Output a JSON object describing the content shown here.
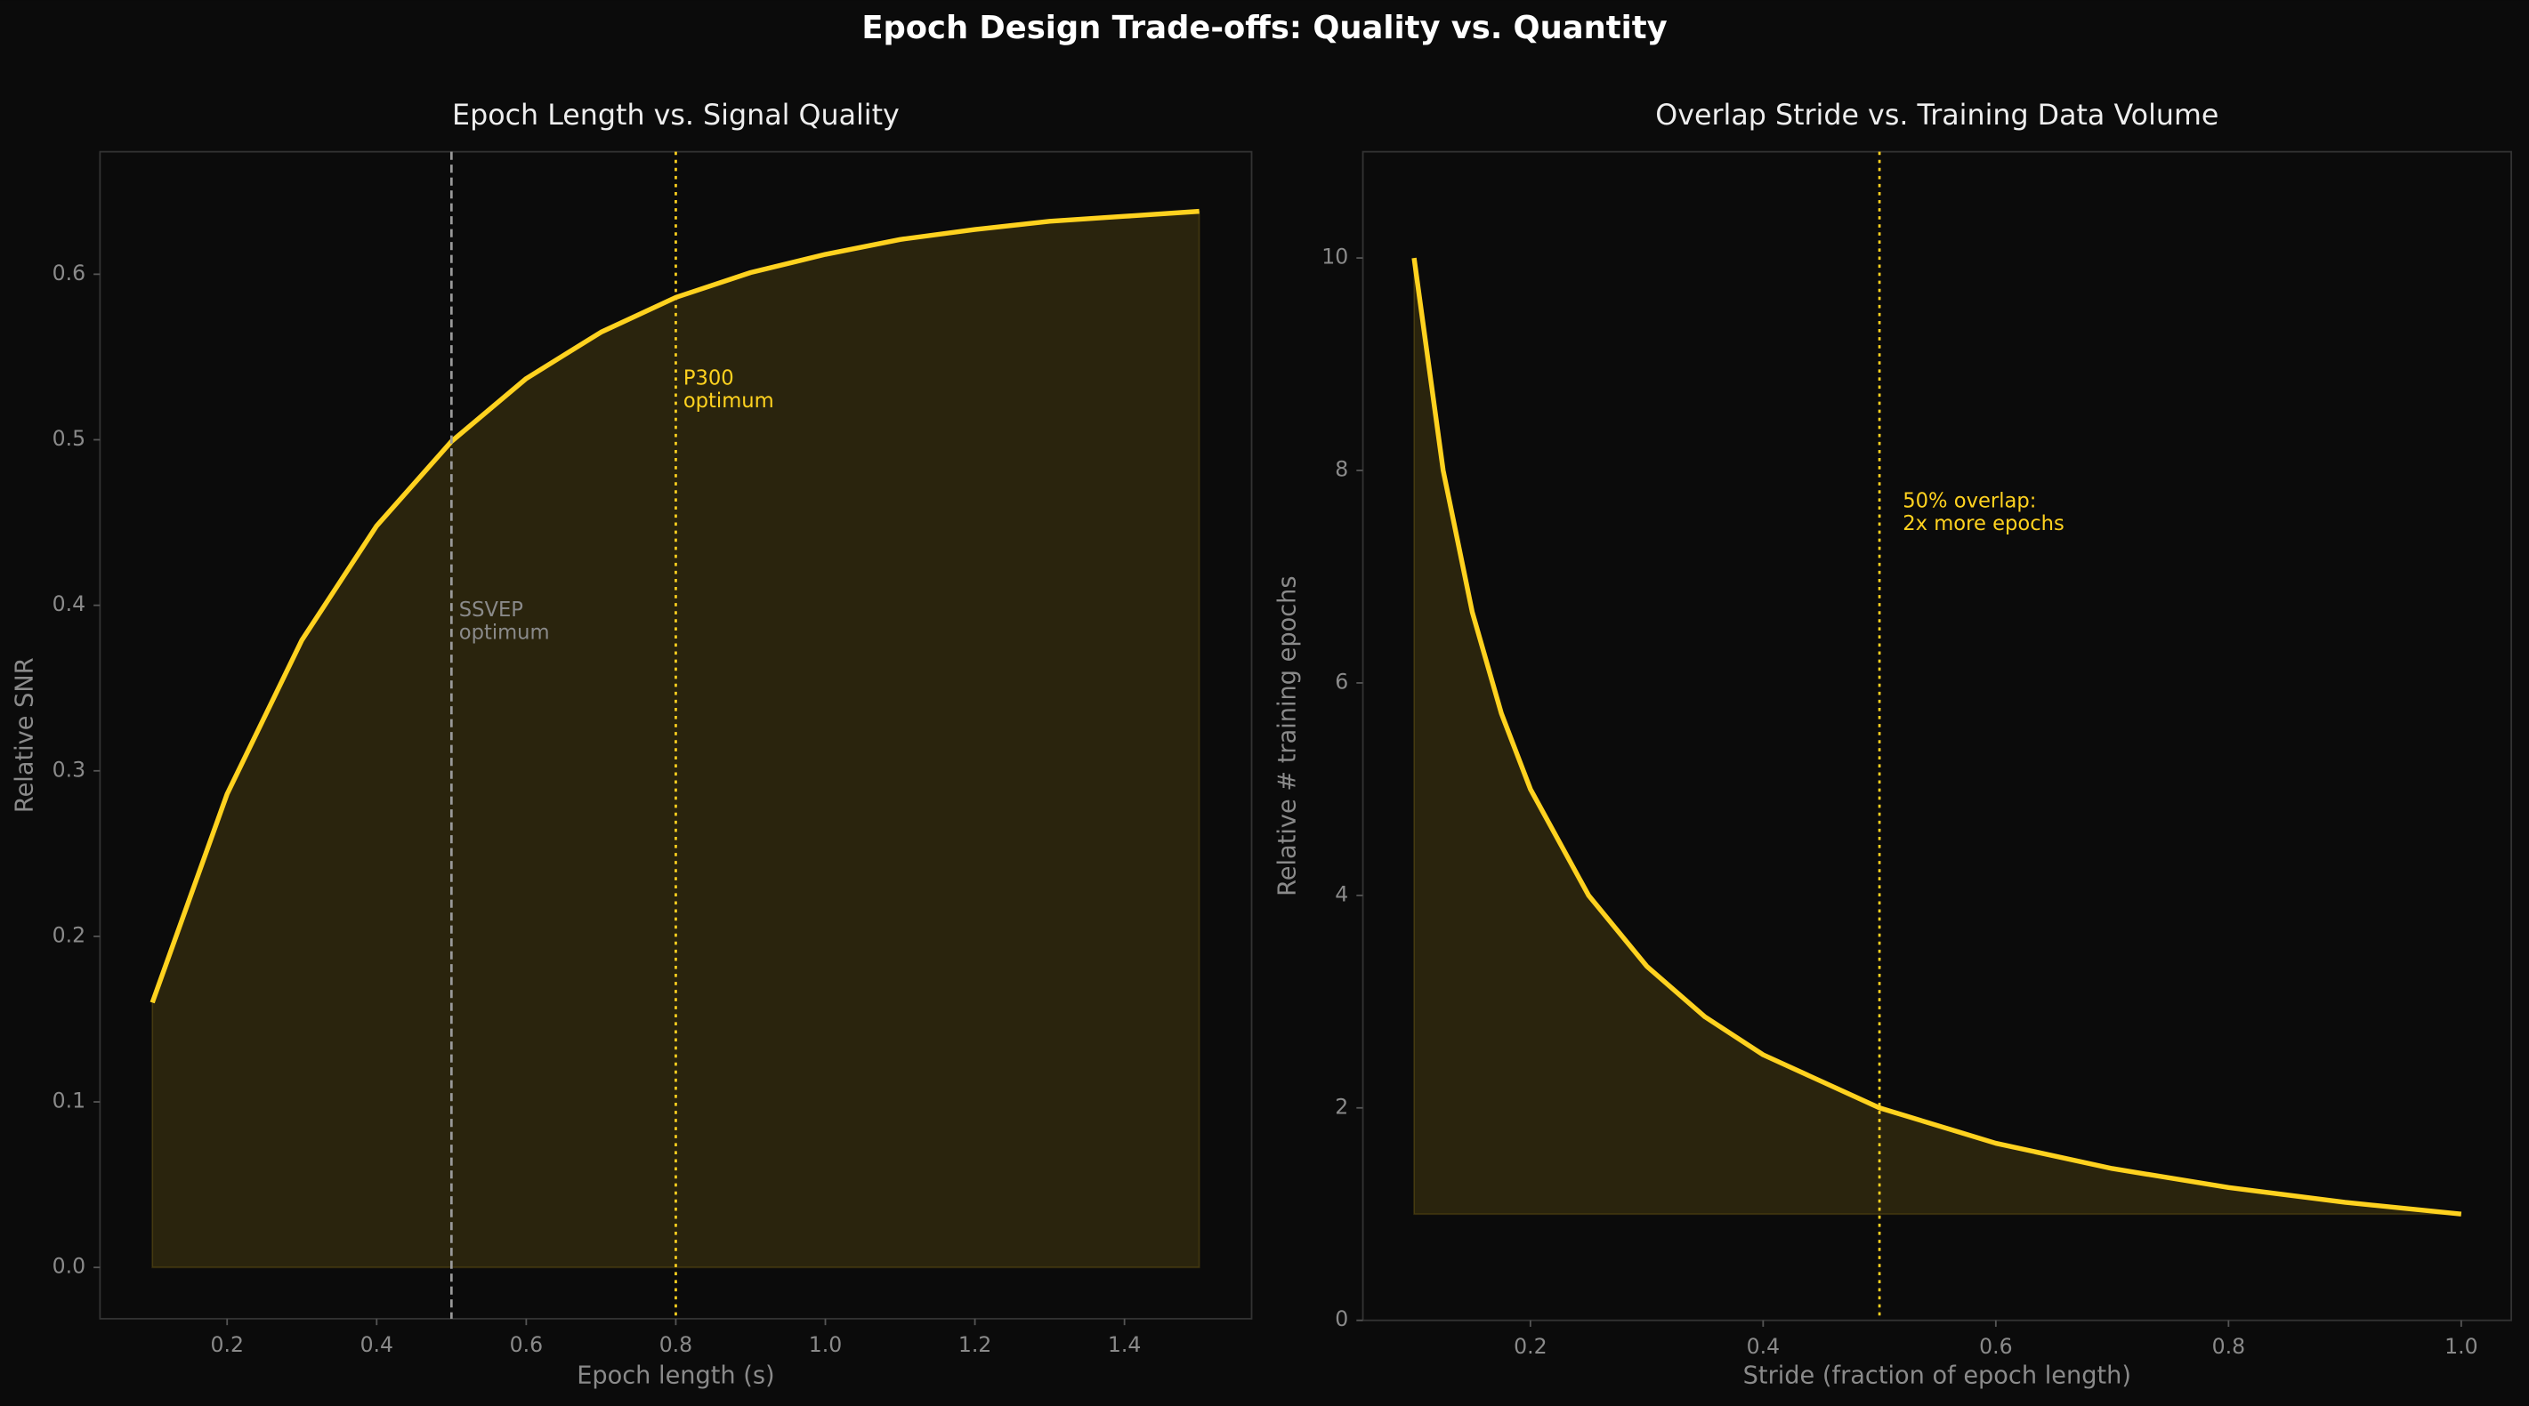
{
  "title": "Epoch Design Trade-offs: Quality vs. Quantity",
  "chart_data": [
    {
      "type": "line",
      "title": "Epoch Length vs. Signal Quality",
      "x_label": "Epoch length (s)",
      "y_label": "Relative SNR",
      "x": [
        0.1,
        0.2,
        0.3,
        0.4,
        0.5,
        0.6,
        0.7,
        0.8,
        0.9,
        1.0,
        1.1,
        1.2,
        1.3,
        1.4,
        1.5
      ],
      "series": [
        {
          "color": "#ffd21f",
          "values": [
            0.16,
            0.286,
            0.379,
            0.448,
            0.499,
            0.537,
            0.565,
            0.586,
            0.601,
            0.612,
            0.621,
            0.627,
            0.632,
            0.635,
            0.638
          ],
          "fill_to": 0
        }
      ],
      "xlim": [
        0.03,
        1.57
      ],
      "ylim": [
        -0.031,
        0.674
      ],
      "xticks": [
        0.2,
        0.4,
        0.6,
        0.8,
        {
          "value": 1,
          "label": "1.0"
        },
        1.2,
        1.4
      ],
      "yticks": [
        {
          "value": 0,
          "label": "0.0"
        },
        0.1,
        0.2,
        0.3,
        0.4,
        0.5,
        0.6
      ],
      "grid": false,
      "vlines": [
        {
          "x": 0.5,
          "color": "#9a9a9a",
          "style": "dashed"
        },
        {
          "x": 0.8,
          "color": "#ffd21f",
          "style": "dotted"
        }
      ],
      "annotations": [
        {
          "text": [
            "SSVEP",
            "optimum"
          ],
          "x": 0.51,
          "y": 0.39,
          "color": "#8a8a8a"
        },
        {
          "text": [
            "P300",
            "optimum"
          ],
          "x": 0.81,
          "y": 0.53,
          "color": "#ffd21f"
        }
      ]
    },
    {
      "type": "line",
      "title": "Overlap Stride vs. Training Data Volume",
      "x_label": "Stride (fraction of epoch length)",
      "y_label": "Relative # training epochs",
      "x": [
        0.1,
        0.125,
        0.15,
        0.175,
        0.2,
        0.25,
        0.3,
        0.35,
        0.4,
        0.5,
        0.6,
        0.7,
        0.8,
        0.9,
        1.0
      ],
      "series": [
        {
          "color": "#ffd21f",
          "values": [
            10,
            8,
            6.667,
            5.714,
            5,
            4,
            3.333,
            2.857,
            2.5,
            2,
            1.667,
            1.429,
            1.25,
            1.111,
            1
          ],
          "fill_to": 1
        }
      ],
      "xlim": [
        0.056,
        1.043
      ],
      "ylim": [
        0,
        11
      ],
      "xticks": [
        0.2,
        0.4,
        0.6,
        0.8,
        {
          "value": 1,
          "label": "1.0"
        }
      ],
      "yticks": [
        0,
        2,
        4,
        6,
        8,
        10
      ],
      "grid": false,
      "vlines": [
        {
          "x": 0.5,
          "color": "#ffd21f",
          "style": "dotted"
        }
      ],
      "annotations": [
        {
          "text": [
            "50% overlap:",
            "2x more epochs"
          ],
          "x": 0.52,
          "y": 7.6,
          "color": "#ffd21f"
        }
      ]
    }
  ]
}
